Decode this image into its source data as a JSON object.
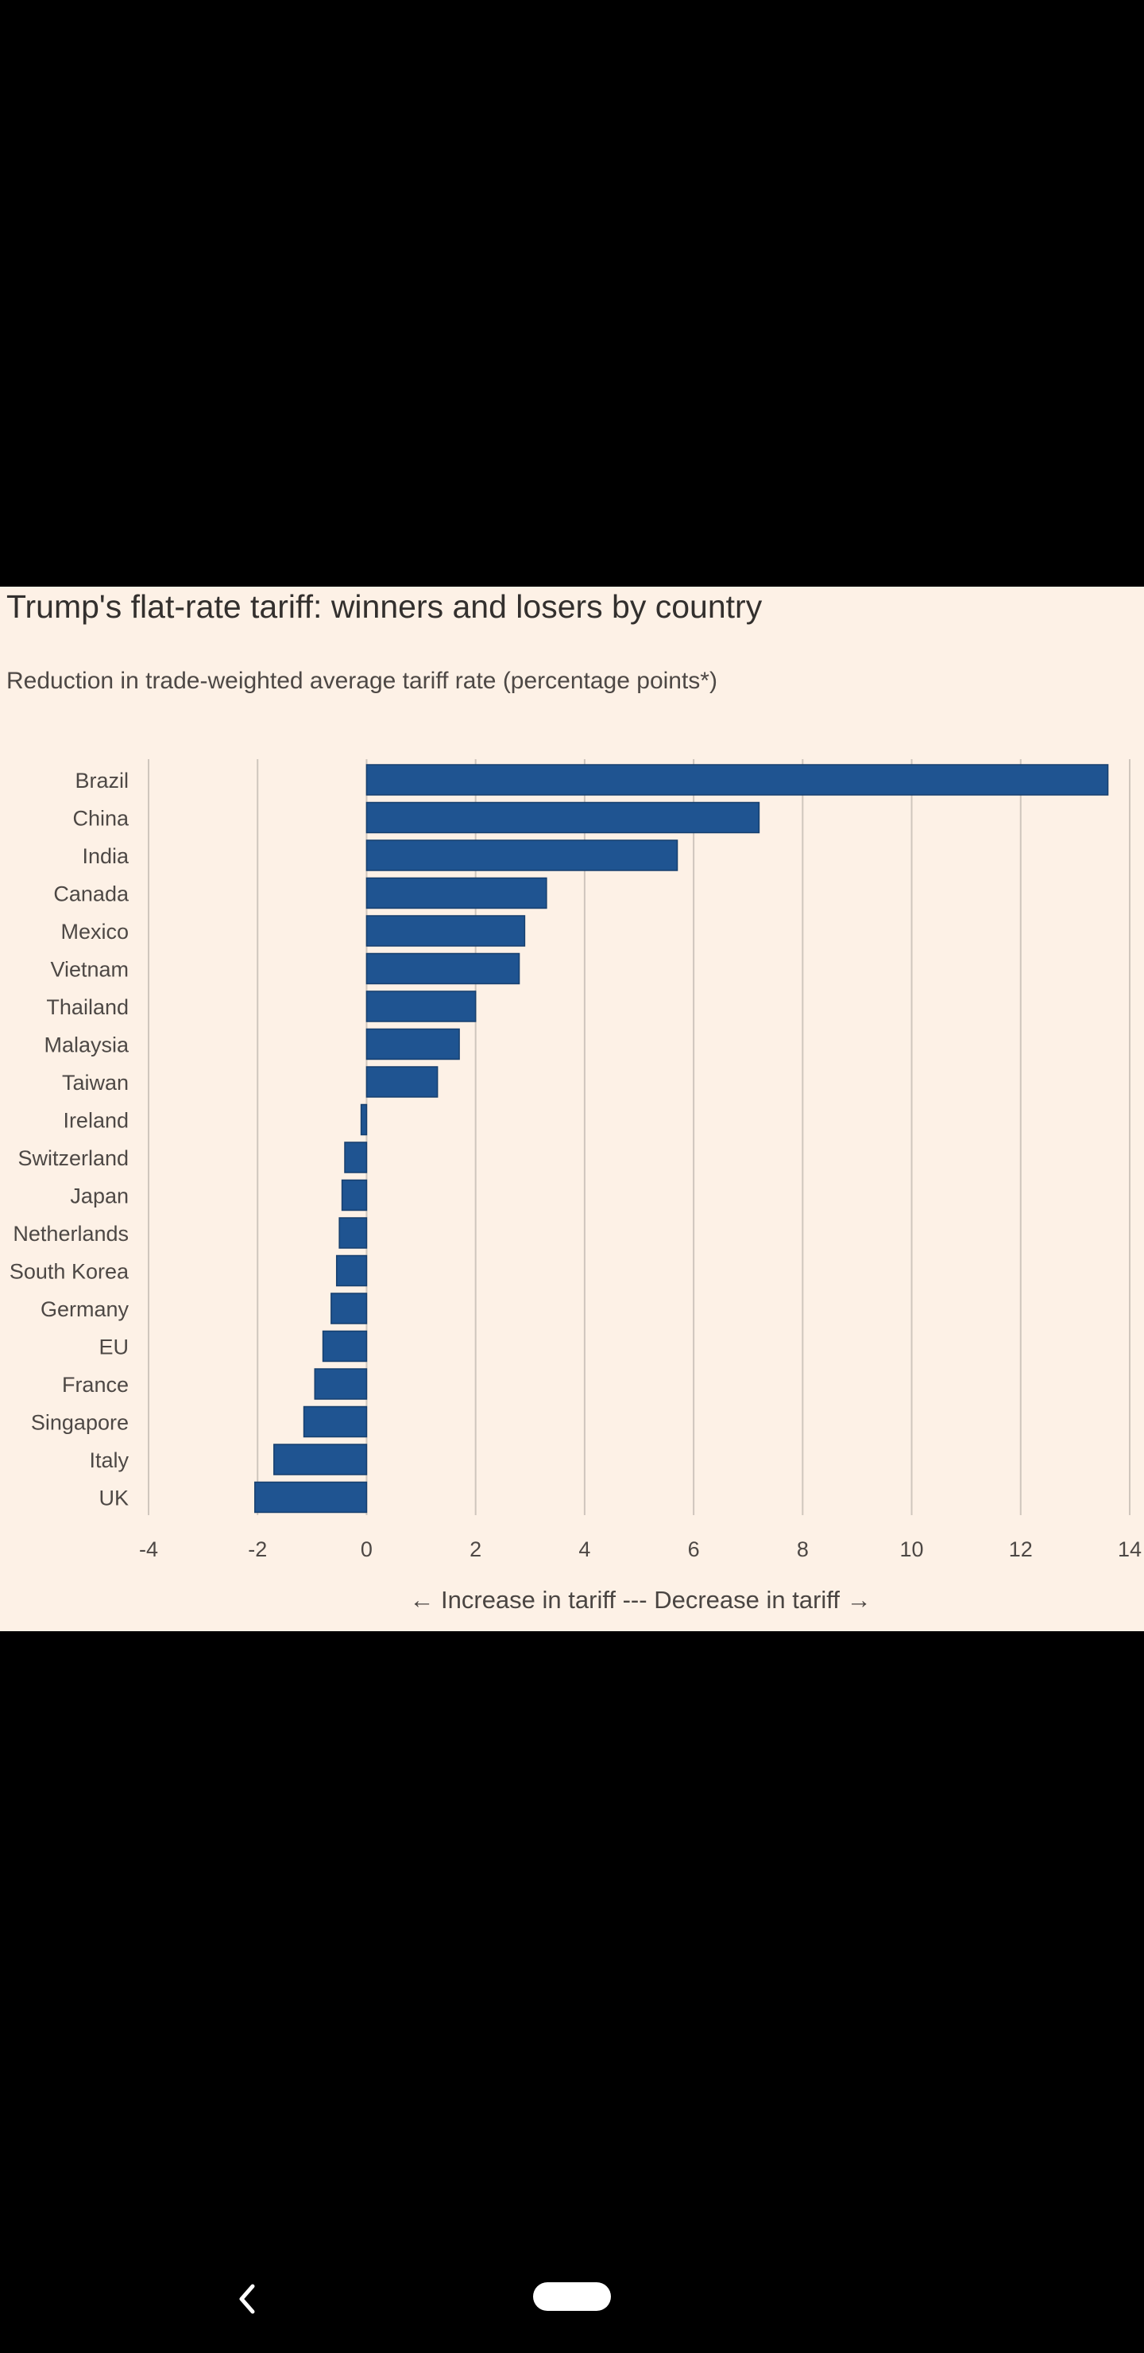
{
  "chart_data": {
    "type": "bar",
    "orientation": "horizontal",
    "title": "Trump's flat-rate tariff: winners and losers by country",
    "subtitle": "Reduction in trade-weighted average tariff rate (percentage points*)",
    "xlabel": "← Increase in tariff --- Decrease in tariff →",
    "ylabel": "",
    "xlim": [
      -4,
      14
    ],
    "xticks": [
      -4,
      -2,
      0,
      2,
      4,
      6,
      8,
      10,
      12,
      14
    ],
    "xtick_labels": [
      "-4",
      "-2",
      "0",
      "2",
      "4",
      "6",
      "8",
      "10",
      "12",
      "14"
    ],
    "grid": true,
    "bar_color": "#1f5491",
    "categories": [
      "Brazil",
      "China",
      "India",
      "Canada",
      "Mexico",
      "Vietnam",
      "Thailand",
      "Malaysia",
      "Taiwan",
      "Ireland",
      "Switzerland",
      "Japan",
      "Netherlands",
      "South Korea",
      "Germany",
      "EU",
      "France",
      "Singapore",
      "Italy",
      "UK"
    ],
    "values": [
      13.6,
      7.2,
      5.7,
      3.3,
      2.9,
      2.8,
      2.0,
      1.7,
      1.3,
      -0.1,
      -0.4,
      -0.45,
      -0.5,
      -0.55,
      -0.65,
      -0.8,
      -0.95,
      -1.15,
      -1.7,
      -2.05
    ]
  },
  "nav": {
    "back_icon": "chevron-left-icon",
    "home_icon": "home-pill-icon"
  }
}
